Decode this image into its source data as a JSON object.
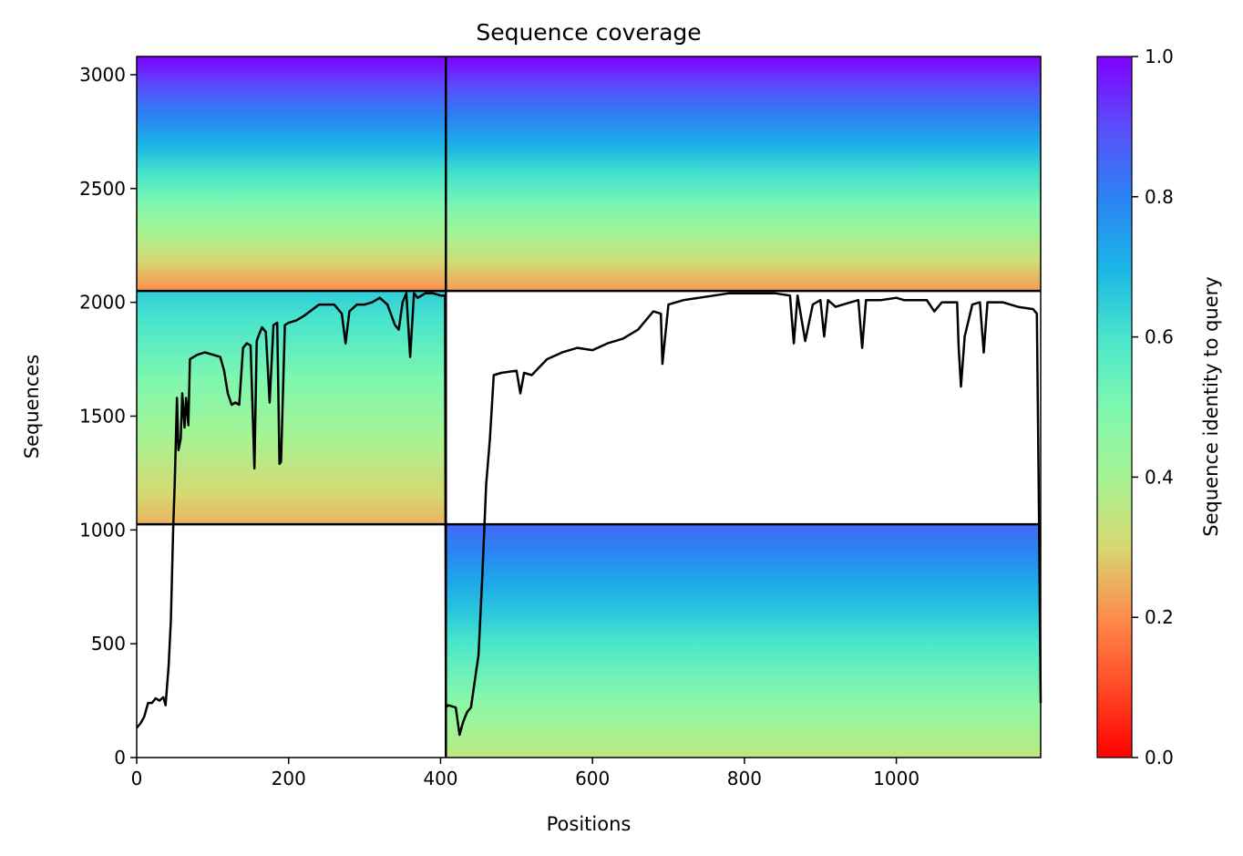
{
  "chart_data": {
    "type": "heatmap",
    "title": "Sequence coverage",
    "xlabel": "Positions",
    "ylabel": "Sequences",
    "xlim": [
      0,
      1190
    ],
    "ylim": [
      0,
      3080
    ],
    "xticks": [
      0,
      200,
      400,
      600,
      800,
      1000
    ],
    "yticks": [
      0,
      500,
      1000,
      1500,
      2000,
      2500,
      3000
    ],
    "colorbar": {
      "label": "Sequence identity to query",
      "range": [
        0,
        1
      ],
      "ticks": [
        "0.0",
        "0.2",
        "0.4",
        "0.6",
        "0.8",
        "1.0"
      ],
      "tick_values": [
        0,
        0.2,
        0.4,
        0.6,
        0.8,
        1.0
      ],
      "colormap": "rainbow_r"
    },
    "chain_boundaries_x": [
      407
    ],
    "chain_boundaries_y": [
      1025,
      2050
    ],
    "blocks": [
      {
        "name": "chain-1 pair",
        "x": [
          0,
          407
        ],
        "y": [
          2050,
          3080
        ],
        "identity_top": 1.0,
        "identity_bottom": 0.2
      },
      {
        "name": "chain-2 pair",
        "x": [
          407,
          1190
        ],
        "y": [
          2050,
          3080
        ],
        "identity_top": 1.0,
        "identity_bottom": 0.22
      },
      {
        "name": "chain-1 unpaired",
        "x": [
          0,
          407
        ],
        "y": [
          1025,
          2050
        ],
        "identity_top": 0.65,
        "identity_bottom": 0.25
      },
      {
        "name": "chain-2 unpaired",
        "x": [
          407,
          1190
        ],
        "y": [
          0,
          1025
        ],
        "identity_top": 0.85,
        "identity_bottom": 0.35
      }
    ],
    "coverage_line": {
      "color": "#000000",
      "x": [
        0,
        5,
        10,
        15,
        20,
        25,
        30,
        35,
        38,
        42,
        45,
        48,
        50,
        53,
        55,
        58,
        60,
        63,
        65,
        68,
        70,
        75,
        80,
        90,
        100,
        110,
        115,
        120,
        125,
        130,
        135,
        140,
        145,
        150,
        155,
        158,
        160,
        165,
        170,
        175,
        180,
        185,
        188,
        190,
        195,
        200,
        210,
        220,
        240,
        260,
        270,
        275,
        280,
        290,
        300,
        310,
        320,
        330,
        340,
        345,
        350,
        355,
        360,
        365,
        370,
        380,
        390,
        400,
        406,
        407,
        410,
        420,
        425,
        430,
        435,
        440,
        450,
        455,
        460,
        465,
        470,
        480,
        500,
        505,
        510,
        520,
        540,
        560,
        580,
        600,
        620,
        640,
        660,
        680,
        690,
        692,
        700,
        720,
        740,
        760,
        780,
        800,
        820,
        840,
        860,
        865,
        870,
        880,
        890,
        900,
        905,
        910,
        920,
        940,
        950,
        955,
        960,
        980,
        1000,
        1010,
        1040,
        1050,
        1060,
        1080,
        1082,
        1085,
        1090,
        1100,
        1110,
        1115,
        1120,
        1140,
        1160,
        1180,
        1185,
        1188,
        1190
      ],
      "y": [
        130,
        150,
        180,
        240,
        240,
        260,
        250,
        265,
        230,
        400,
        600,
        1000,
        1200,
        1580,
        1350,
        1400,
        1600,
        1450,
        1580,
        1460,
        1750,
        1760,
        1770,
        1780,
        1770,
        1760,
        1700,
        1600,
        1550,
        1560,
        1550,
        1800,
        1820,
        1810,
        1270,
        1830,
        1850,
        1890,
        1870,
        1560,
        1900,
        1910,
        1290,
        1300,
        1900,
        1910,
        1920,
        1940,
        1990,
        1990,
        1950,
        1820,
        1960,
        1990,
        1990,
        2000,
        2020,
        1990,
        1900,
        1880,
        2000,
        2040,
        1760,
        2040,
        2020,
        2040,
        2040,
        2030,
        2030,
        220,
        230,
        220,
        100,
        160,
        200,
        220,
        450,
        800,
        1200,
        1400,
        1680,
        1690,
        1700,
        1600,
        1690,
        1680,
        1750,
        1780,
        1800,
        1790,
        1820,
        1840,
        1880,
        1960,
        1950,
        1730,
        1990,
        2010,
        2020,
        2030,
        2040,
        2040,
        2040,
        2040,
        2030,
        1820,
        2030,
        1830,
        1990,
        2010,
        1850,
        2010,
        1980,
        2000,
        2010,
        1800,
        2010,
        2010,
        2020,
        2010,
        2010,
        1960,
        2000,
        2000,
        1800,
        1630,
        1850,
        1990,
        2000,
        1780,
        2000,
        2000,
        1980,
        1970,
        1950,
        1000,
        240
      ]
    }
  }
}
